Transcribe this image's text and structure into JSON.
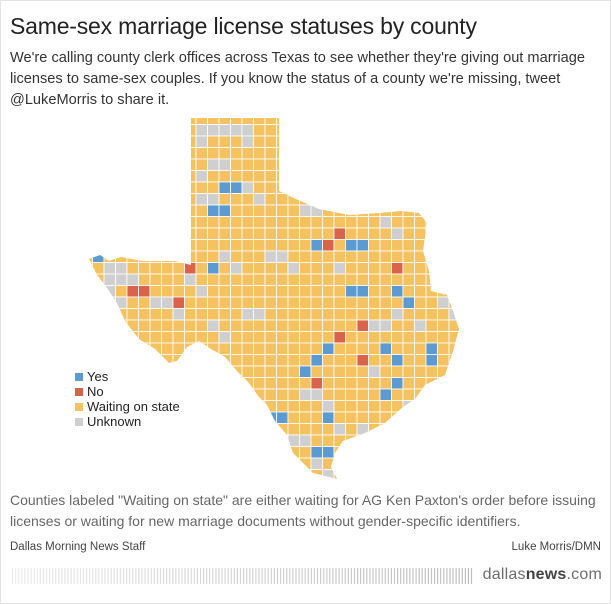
{
  "title": "Same-sex marriage license statuses by county",
  "subtitle": "We're calling county clerk offices across Texas to see whether they're giving out marriage licenses to same-sex couples. If you know the status of a county we're missing, tweet @LukeMorris to share it.",
  "legend": [
    {
      "label": "Yes",
      "color": "#5b9bd1"
    },
    {
      "label": "No",
      "color": "#d9634b"
    },
    {
      "label": "Waiting on state",
      "color": "#f5c261"
    },
    {
      "label": "Unknown",
      "color": "#cfcfcf"
    }
  ],
  "colors": {
    "yes": "#5b9bd1",
    "no": "#d9634b",
    "waiting": "#f5c261",
    "unknown": "#cfcfcf",
    "border": "#ffffff"
  },
  "note": "Counties labeled \"Waiting on state\" are either waiting for AG Ken Paxton's order before issuing licenses or waiting for new marriage documents without gender-specific identifiers.",
  "credit_left": "Dallas Morning News Staff",
  "credit_right": "Luke Morris/DMN",
  "brand": {
    "prefix": "dallas",
    "bold": "news",
    "suffix": ".com"
  }
}
